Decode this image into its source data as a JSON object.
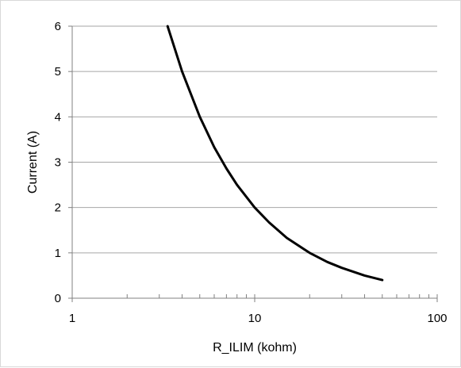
{
  "chart_data": {
    "type": "line",
    "title": "",
    "xlabel": "R_ILIM (kohm)",
    "ylabel": "Current (A)",
    "x_scale": "log",
    "xlim": [
      1,
      100
    ],
    "ylim": [
      0,
      6
    ],
    "x_ticks": [
      1,
      10,
      100
    ],
    "x_tick_labels": [
      "1",
      "10",
      "100"
    ],
    "y_ticks": [
      0,
      1,
      2,
      3,
      4,
      5,
      6
    ],
    "y_tick_labels": [
      "0",
      "1",
      "2",
      "3",
      "4",
      "5",
      "6"
    ],
    "grid": {
      "horizontal": true,
      "vertical": false
    },
    "legend": "none",
    "series": [
      {
        "color": "#000000",
        "x": [
          3.33,
          4,
          5,
          6,
          7,
          8,
          10,
          12,
          15,
          20,
          25,
          30,
          40,
          50
        ],
        "y": [
          6.0,
          5.0,
          4.0,
          3.33,
          2.86,
          2.5,
          2.0,
          1.67,
          1.33,
          1.0,
          0.8,
          0.67,
          0.5,
          0.4
        ]
      }
    ],
    "colors": {
      "grid": "#a6a6a6",
      "axis": "#808080",
      "line": "#000000",
      "border": "#d9d9d9"
    }
  }
}
